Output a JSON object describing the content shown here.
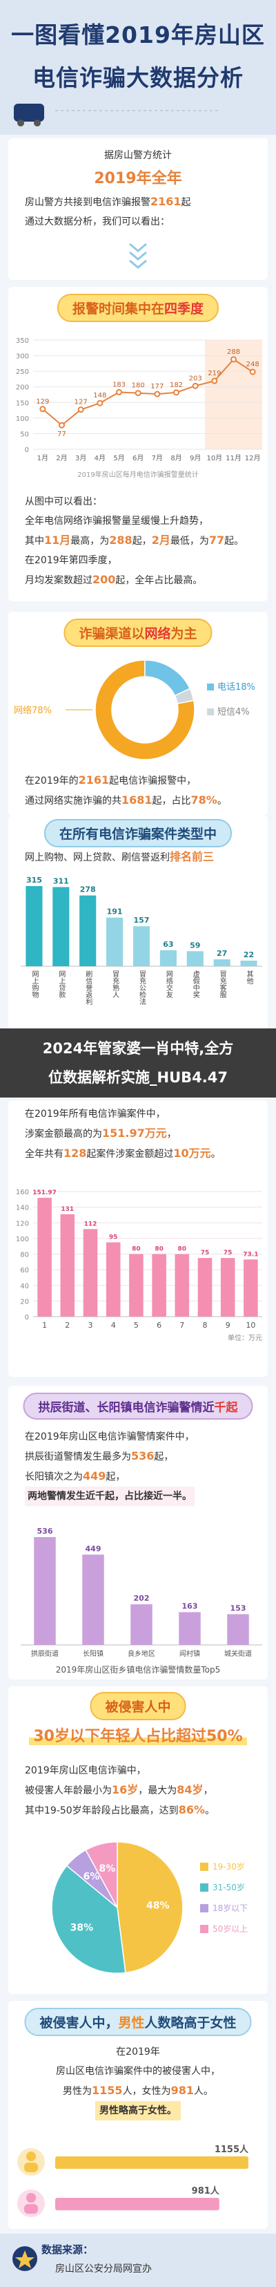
{
  "header": {
    "title": [
      "一图看懂2019年房山区",
      "电信诈骗大数据分析"
    ]
  },
  "intro": {
    "source": "据房山警方统计",
    "year": "2019年全年",
    "text": [
      [
        "房山警方共接到电信诈骗报警",
        "2161",
        "起"
      ],
      [
        "通过大数据分析，我们可以看出："
      ]
    ]
  },
  "sections": [
    {
      "heading": [
        "报警时间集中在",
        "四季度"
      ],
      "text": [
        [
          "从图中可以看出："
        ],
        [
          "全年电信网络诈骗报警量呈缓慢上升趋势，"
        ],
        [
          "其中",
          "11月",
          "最高，为",
          "288",
          "起，",
          "2月",
          "最低，为",
          "77",
          "起。"
        ],
        [
          "在2019年第四季度，"
        ],
        [
          "月均发案数超过",
          "200",
          "起，全年占比最高。"
        ]
      ]
    },
    {
      "heading": [
        "诈骗渠道以",
        "网络",
        "为主"
      ],
      "text": [
        [
          "在2019年的",
          "2161",
          "起电信诈骗报警中，"
        ],
        [
          "通过网络实施诈骗的共",
          "1681",
          "起，占比",
          "78%",
          "。"
        ]
      ]
    },
    {
      "heading": [
        "在所有电信诈骗案件类型中"
      ],
      "text": [
        [
          "网上购物、网上贷款、刷信誉返利",
          "排名前三"
        ]
      ]
    },
    {
      "text": [
        [
          "在2019年所有电信诈骗案件中，"
        ],
        [
          "涉案金额最高的为",
          "151.97万元",
          "，"
        ],
        [
          "全年共有",
          "128",
          "起案件涉案金额超过",
          "10万元",
          "。"
        ]
      ]
    },
    {
      "heading": [
        "拱辰街道、长阳镇电信诈骗警情近",
        "千起"
      ],
      "text": [
        [
          "在2019年房山区电信诈骗警情案件中，"
        ],
        [
          "拱辰街道警情发生最多为",
          "536",
          "起，"
        ],
        [
          "长阳镇次之为",
          "449",
          "起，"
        ],
        [
          "两地警情发生近千起，占比接近一半。"
        ]
      ]
    },
    {
      "heading": [
        "被侵害人中"
      ],
      "subheading": [
        "30岁",
        "以下年轻人占比超过",
        "50%"
      ],
      "text": [
        [
          "2019年房山区电信诈骗中，"
        ],
        [
          "被侵害人年龄最小为",
          "16岁",
          "，最大为",
          "84岁",
          "，"
        ],
        [
          "其中19-50岁年龄段占比最高，达到",
          "86%",
          "。"
        ]
      ]
    },
    {
      "heading": [
        "被侵害人中，",
        "男性",
        "人数略高于女性"
      ],
      "text": [
        [
          "在2019年"
        ],
        [
          "房山区电信诈骗案件中的被侵害人中，"
        ],
        [
          "男性为",
          "1155",
          "人，女性为",
          "981",
          "人。"
        ],
        [
          "男性略高于女性。"
        ]
      ]
    }
  ],
  "overlay": [
    "2024年管家婆一肖中特,全方",
    "位数据解析实施_HUB4.47"
  ],
  "footer": {
    "label": "数据来源：",
    "source": "房山区公安分局网宣办"
  },
  "chart_data": [
    {
      "type": "line",
      "categories": [
        "1月",
        "2月",
        "3月",
        "4月",
        "5月",
        "6月",
        "7月",
        "8月",
        "9月",
        "10月",
        "11月",
        "12月"
      ],
      "values": [
        129,
        77,
        127,
        148,
        183,
        180,
        177,
        182,
        203,
        219,
        288,
        248
      ],
      "ylim": [
        0,
        350
      ],
      "yticks": [
        0,
        50,
        100,
        150,
        200,
        250,
        300,
        350
      ],
      "color": "#e8823a",
      "caption": "2019年房山区每月电信诈骗报警量统计"
    },
    {
      "type": "pie",
      "categories": [
        "网络",
        "电话",
        "短信"
      ],
      "values": [
        78,
        18,
        4
      ],
      "value_labels": [
        "78%",
        "18%",
        "4%"
      ],
      "colors": [
        "#f5a623",
        "#6fc3e6",
        "#cfd8dc"
      ]
    },
    {
      "type": "bar",
      "categories": [
        "网上购物",
        "网上贷款",
        "刷信誉返利",
        "冒充熟人",
        "冒充公检法",
        "网络交友",
        "虚假中奖",
        "冒充客服",
        "其他"
      ],
      "values": [
        315,
        311,
        278,
        191,
        157,
        63,
        59,
        27,
        22
      ],
      "colors": [
        "#2fb5c4",
        "#2fb5c4",
        "#2fb5c4",
        "#93d5e4",
        "#93d5e4",
        "#93d5e4",
        "#93d5e4",
        "#93d5e4",
        "#93d5e4"
      ]
    },
    {
      "type": "bar",
      "categories": [
        "1",
        "2",
        "3",
        "4",
        "5",
        "6",
        "7",
        "8",
        "9",
        "10"
      ],
      "values": [
        151.97,
        131,
        112,
        95,
        80,
        80,
        80,
        75,
        75,
        73.1
      ],
      "ylim": [
        0,
        160
      ],
      "yticks": [
        0,
        20,
        40,
        60,
        80,
        100,
        120,
        140,
        160
      ],
      "color": "#f48fb1",
      "unit": "单位：万元"
    },
    {
      "type": "bar",
      "categories": [
        "拱辰街道",
        "长阳镇",
        "良乡地区",
        "阎村镇",
        "城关街道"
      ],
      "values": [
        536,
        449,
        202,
        163,
        153
      ],
      "color": "#c9a0dc",
      "caption": "2019年房山区街乡镇电信诈骗警情数量Top5"
    },
    {
      "type": "pie",
      "categories": [
        "19-30岁",
        "31-50岁",
        "18岁以下",
        "50岁以上"
      ],
      "values": [
        48,
        38,
        6,
        8
      ],
      "value_labels": [
        "48%",
        "38%",
        "6%",
        "8%"
      ],
      "colors": [
        "#f6c445",
        "#4fc1c6",
        "#b79fe0",
        "#f49ac1"
      ]
    },
    {
      "type": "hbar",
      "values": [
        1155,
        981
      ],
      "value_labels": [
        "1155人",
        "981人"
      ],
      "colors": [
        "#f6c445",
        "#f49ac1"
      ]
    }
  ]
}
